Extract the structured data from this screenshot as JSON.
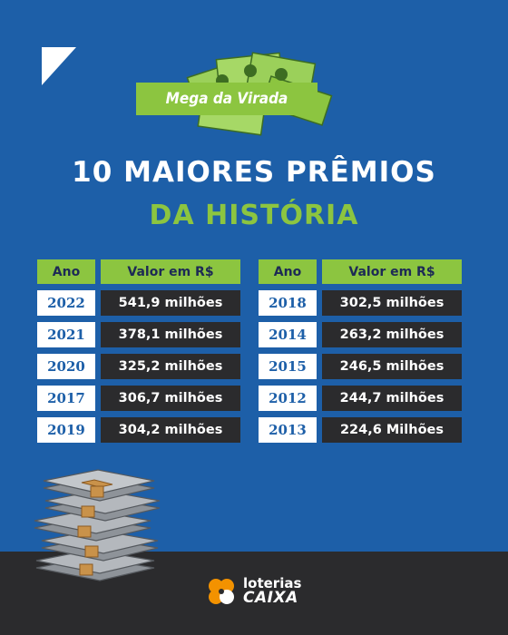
{
  "banner": {
    "label": "Mega da Virada"
  },
  "title": {
    "line1": "10 MAIORES PRÊMIOS",
    "line2": "DA HISTÓRIA"
  },
  "tables": [
    {
      "header_year": "Ano",
      "header_value": "Valor em R$",
      "rows": [
        {
          "year": "2022",
          "value": "541,9 milhões"
        },
        {
          "year": "2021",
          "value": "378,1 milhões"
        },
        {
          "year": "2020",
          "value": "325,2 milhões"
        },
        {
          "year": "2017",
          "value": "306,7 milhões"
        },
        {
          "year": "2019",
          "value": "304,2 milhões"
        }
      ]
    },
    {
      "header_year": "Ano",
      "header_value": "Valor em R$",
      "rows": [
        {
          "year": "2018",
          "value": "302,5 milhões"
        },
        {
          "year": "2014",
          "value": "263,2 milhões"
        },
        {
          "year": "2015",
          "value": "246,5 milhões"
        },
        {
          "year": "2012",
          "value": "244,7 milhões"
        },
        {
          "year": "2013",
          "value": "224,6 Milhões"
        }
      ]
    }
  ],
  "logo": {
    "line1": "loterias",
    "line2": "CAIXA"
  },
  "colors": {
    "background": "#1d5fa8",
    "accent_green": "#8cc540",
    "dark": "#2b2b2d",
    "logo_orange": "#f39200"
  },
  "icons": [
    "corner-triangle-icon",
    "banknotes-fan-icon",
    "money-stack-icon",
    "caixa-clover-logo-icon"
  ]
}
